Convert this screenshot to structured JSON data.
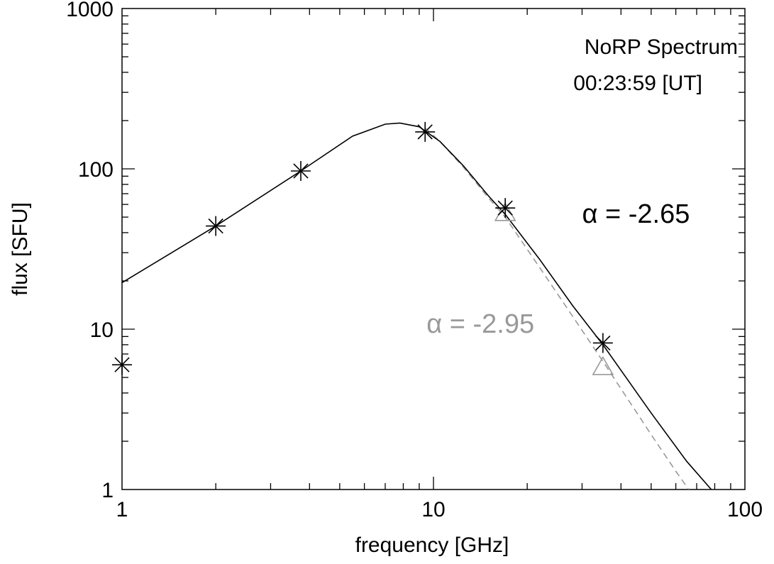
{
  "chart_data": {
    "type": "scatter",
    "title": "NoRP Spectrum",
    "subtitle": "00:23:59 [UT]",
    "xlabel": "frequency [GHz]",
    "ylabel": "flux [SFU]",
    "xscale": "log",
    "yscale": "log",
    "xlim": [
      1,
      100
    ],
    "ylim": [
      1,
      1000
    ],
    "grid": false,
    "legend_position": "top-right",
    "x_ticks": [
      {
        "value": 1,
        "label": "1"
      },
      {
        "value": 10,
        "label": "10"
      },
      {
        "value": 100,
        "label": "100"
      }
    ],
    "y_ticks": [
      {
        "value": 1,
        "label": "1"
      },
      {
        "value": 10,
        "label": "10"
      },
      {
        "value": 100,
        "label": "100"
      },
      {
        "value": 1000,
        "label": "1000"
      }
    ],
    "observed": {
      "marker": "asterisk",
      "color": "#000000",
      "points": [
        {
          "x": 1.0,
          "y": 6.0
        },
        {
          "x": 2.0,
          "y": 44
        },
        {
          "x": 3.75,
          "y": 97
        },
        {
          "x": 9.4,
          "y": 170
        },
        {
          "x": 17.0,
          "y": 57
        },
        {
          "x": 35.0,
          "y": 8.2
        }
      ]
    },
    "corrected": {
      "marker": "triangle",
      "color": "#999999",
      "points": [
        {
          "x": 17.0,
          "y": 53
        },
        {
          "x": 35.0,
          "y": 5.8
        }
      ]
    },
    "fit_black": {
      "style": "solid",
      "color": "#000000",
      "points": [
        {
          "x": 1.0,
          "y": 19.5
        },
        {
          "x": 2.0,
          "y": 44
        },
        {
          "x": 3.75,
          "y": 97
        },
        {
          "x": 5.5,
          "y": 160
        },
        {
          "x": 7.0,
          "y": 190
        },
        {
          "x": 7.8,
          "y": 193
        },
        {
          "x": 9.0,
          "y": 183
        },
        {
          "x": 10.5,
          "y": 148
        },
        {
          "x": 12.5,
          "y": 104
        },
        {
          "x": 15.0,
          "y": 68
        },
        {
          "x": 17.0,
          "y": 52
        },
        {
          "x": 22.0,
          "y": 27
        },
        {
          "x": 28.0,
          "y": 14
        },
        {
          "x": 35.0,
          "y": 8.0
        },
        {
          "x": 50.0,
          "y": 3.0
        },
        {
          "x": 65.0,
          "y": 1.5
        },
        {
          "x": 78.0,
          "y": 1.0
        }
      ]
    },
    "fit_gray": {
      "style": "dashed",
      "color": "#999999",
      "points": [
        {
          "x": 9.4,
          "y": 180
        },
        {
          "x": 10.5,
          "y": 148
        },
        {
          "x": 12.5,
          "y": 102
        },
        {
          "x": 15.0,
          "y": 66
        },
        {
          "x": 17.0,
          "y": 50
        },
        {
          "x": 22.0,
          "y": 24
        },
        {
          "x": 28.0,
          "y": 12
        },
        {
          "x": 35.0,
          "y": 6.3
        },
        {
          "x": 50.0,
          "y": 2.2
        },
        {
          "x": 60.0,
          "y": 1.3
        },
        {
          "x": 66.0,
          "y": 1.0
        }
      ]
    },
    "annotations": [
      {
        "text": "α = -2.65",
        "x": 30,
        "y": 46,
        "color": "#000000"
      },
      {
        "text": "α = -2.95",
        "x": 9.5,
        "y": 9.5,
        "color": "#999999"
      }
    ]
  }
}
